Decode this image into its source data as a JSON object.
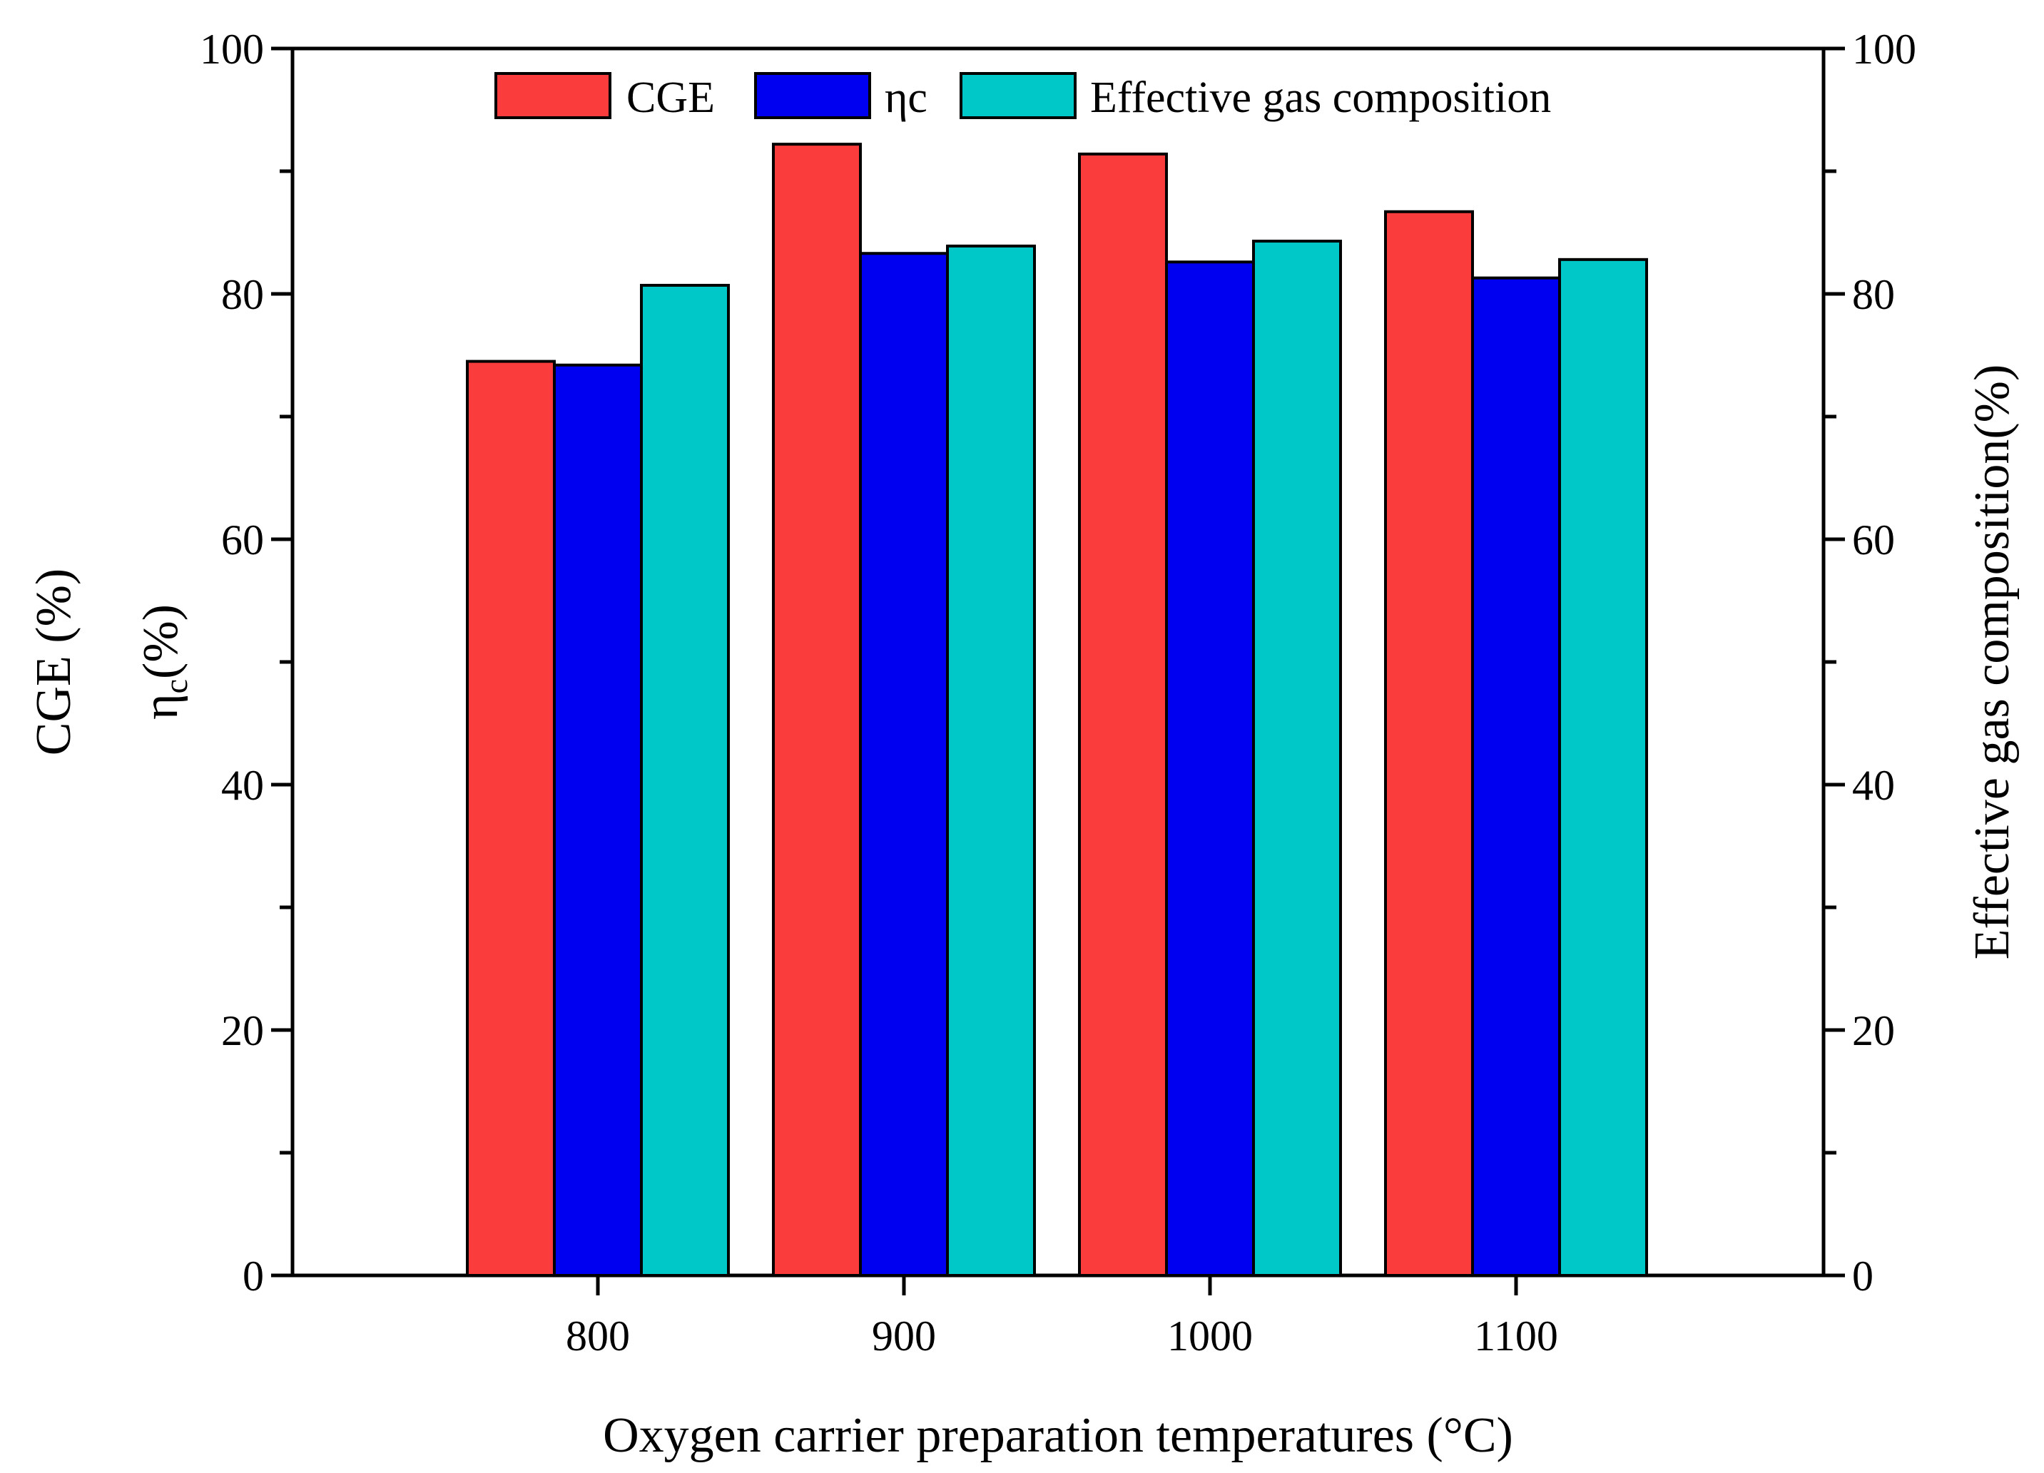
{
  "chart_data": {
    "type": "bar",
    "title": "",
    "xlabel": "Oxygen carrier preparation temperatures (°C)",
    "ylabel_left_line1": "CGE (%)",
    "ylabel_left_line2_main": "η",
    "ylabel_left_line2_sub": "c",
    "ylabel_left_line2_rest": "(%)",
    "ylabel_right": "Effective gas composition(%)",
    "categories": [
      "800",
      "900",
      "1000",
      "1100"
    ],
    "ylim": [
      0,
      100
    ],
    "yticks": [
      "0",
      "20",
      "40",
      "60",
      "80",
      "100"
    ],
    "yticks_right": [
      "0",
      "20",
      "40",
      "60",
      "80",
      "100"
    ],
    "series": [
      {
        "name": "CGE",
        "color": "#FA3C3C",
        "values": [
          74.5,
          92.2,
          91.4,
          86.7
        ]
      },
      {
        "name": "ηc",
        "color": "#0000F0",
        "values": [
          74.2,
          83.3,
          82.6,
          81.3
        ]
      },
      {
        "name": "Effective gas composition",
        "color": "#00C8C8",
        "values": [
          80.7,
          83.9,
          84.3,
          82.8
        ]
      }
    ],
    "legend_position": "top-center",
    "grid": false
  }
}
